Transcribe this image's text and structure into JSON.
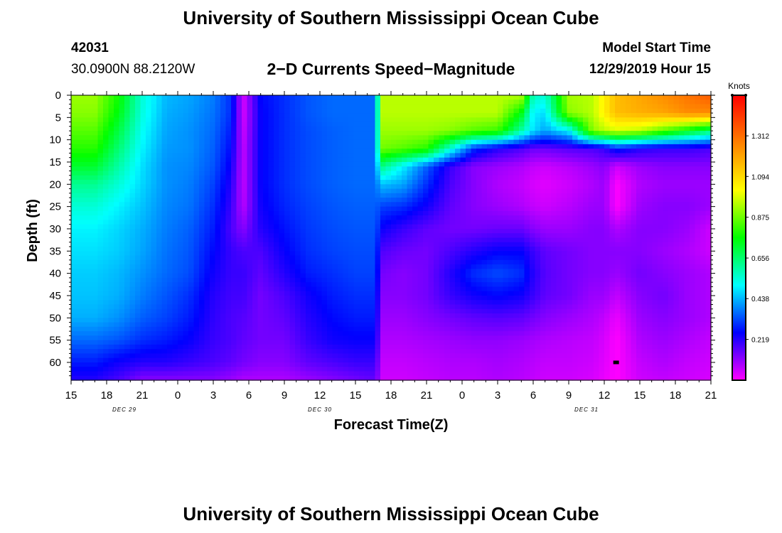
{
  "header": {
    "title": "University of Southern Mississippi Ocean Cube",
    "station_id": "42031",
    "coordinates": "30.0900N 88.2120W",
    "plot_title": "2−D Currents Speed−Magnitude",
    "model_start_label": "Model Start Time",
    "model_start_value": "12/29/2019 Hour 15"
  },
  "footer": {
    "title": "University of Southern Mississippi Ocean Cube"
  },
  "chart_data": {
    "type": "heatmap",
    "title": "2−D Currents Speed−Magnitude",
    "xlabel": "Forecast Time(Z)",
    "ylabel": "Depth (ft)",
    "x_tick_labels": [
      "15",
      "18",
      "21",
      "0",
      "3",
      "6",
      "9",
      "12",
      "15",
      "18",
      "21",
      "0",
      "3",
      "6",
      "9",
      "12",
      "15",
      "18",
      "21"
    ],
    "x_range_hours": [
      0,
      54
    ],
    "date_labels": [
      {
        "text": "DEC 29",
        "hour": 4.5
      },
      {
        "text": "DEC 30",
        "hour": 21
      },
      {
        "text": "DEC 31",
        "hour": 43.5
      }
    ],
    "y_tick_labels": [
      "0",
      "5",
      "10",
      "15",
      "20",
      "25",
      "30",
      "35",
      "40",
      "45",
      "50",
      "55",
      "60"
    ],
    "y_range_ft": [
      0,
      64
    ],
    "colorbar": {
      "unit": "Knots",
      "tick_labels": [
        "1.312",
        "1.094",
        "0.875",
        "0.656",
        "0.438",
        "0.219"
      ],
      "range": [
        0,
        1.53
      ],
      "colors": [
        "#ff00ff",
        "#0000ff",
        "#00ffff",
        "#00ff00",
        "#ffff00",
        "#ff8000",
        "#ff0000"
      ]
    },
    "nodes_hours": [
      0,
      2,
      4,
      6,
      8,
      10,
      12,
      13.5,
      14.5,
      16,
      18,
      20,
      22,
      24,
      25.8,
      26,
      28,
      30,
      32,
      34,
      36,
      38,
      39,
      40,
      42,
      44,
      45,
      46,
      48,
      50,
      52,
      54
    ],
    "nodes_depth_ft": [
      0,
      4,
      8,
      12,
      16,
      20,
      25,
      30,
      35,
      40,
      45,
      50,
      55,
      60,
      64
    ],
    "speed_knots": [
      [
        0.92,
        0.92,
        0.78,
        0.55,
        0.44,
        0.42,
        0.38,
        0.3,
        0.04,
        0.26,
        0.3,
        0.34,
        0.36,
        0.36,
        0.36,
        0.95,
        0.95,
        0.95,
        0.95,
        0.95,
        0.95,
        0.95,
        0.58,
        0.55,
        0.93,
        0.95,
        1.05,
        1.15,
        1.2,
        1.25,
        1.3,
        1.35
      ],
      [
        0.9,
        0.9,
        0.75,
        0.54,
        0.43,
        0.41,
        0.37,
        0.3,
        0.04,
        0.25,
        0.3,
        0.34,
        0.36,
        0.36,
        0.36,
        0.95,
        0.95,
        0.95,
        0.95,
        0.95,
        0.95,
        0.75,
        0.5,
        0.48,
        0.9,
        0.95,
        1.05,
        1.15,
        1.18,
        1.2,
        1.25,
        1.25
      ],
      [
        0.85,
        0.85,
        0.7,
        0.52,
        0.42,
        0.4,
        0.36,
        0.28,
        0.05,
        0.25,
        0.3,
        0.33,
        0.35,
        0.36,
        0.36,
        0.92,
        0.92,
        0.92,
        0.9,
        0.85,
        0.82,
        0.6,
        0.48,
        0.42,
        0.5,
        0.9,
        0.95,
        0.98,
        0.95,
        0.85,
        0.75,
        0.65
      ],
      [
        0.8,
        0.8,
        0.65,
        0.5,
        0.41,
        0.4,
        0.35,
        0.26,
        0.06,
        0.25,
        0.3,
        0.33,
        0.35,
        0.36,
        0.36,
        0.88,
        0.85,
        0.8,
        0.55,
        0.3,
        0.22,
        0.18,
        0.15,
        0.15,
        0.17,
        0.18,
        0.2,
        0.28,
        0.22,
        0.2,
        0.2,
        0.18
      ],
      [
        0.72,
        0.72,
        0.6,
        0.48,
        0.4,
        0.39,
        0.34,
        0.24,
        0.06,
        0.25,
        0.3,
        0.33,
        0.35,
        0.36,
        0.36,
        0.65,
        0.5,
        0.35,
        0.2,
        0.12,
        0.1,
        0.08,
        0.06,
        0.05,
        0.07,
        0.1,
        0.12,
        0.05,
        0.1,
        0.12,
        0.12,
        0.12
      ],
      [
        0.62,
        0.62,
        0.55,
        0.47,
        0.4,
        0.38,
        0.32,
        0.22,
        0.06,
        0.25,
        0.3,
        0.33,
        0.35,
        0.36,
        0.36,
        0.45,
        0.42,
        0.3,
        0.18,
        0.12,
        0.08,
        0.06,
        0.04,
        0.03,
        0.05,
        0.08,
        0.1,
        0.0,
        0.08,
        0.1,
        0.1,
        0.1
      ],
      [
        0.55,
        0.55,
        0.5,
        0.45,
        0.39,
        0.37,
        0.3,
        0.2,
        0.07,
        0.24,
        0.29,
        0.32,
        0.34,
        0.35,
        0.35,
        0.32,
        0.3,
        0.24,
        0.16,
        0.12,
        0.1,
        0.08,
        0.06,
        0.05,
        0.07,
        0.1,
        0.1,
        0.0,
        0.1,
        0.12,
        0.12,
        0.1
      ],
      [
        0.5,
        0.5,
        0.47,
        0.43,
        0.38,
        0.35,
        0.28,
        0.18,
        0.12,
        0.22,
        0.27,
        0.31,
        0.33,
        0.34,
        0.34,
        0.25,
        0.2,
        0.16,
        0.14,
        0.14,
        0.15,
        0.15,
        0.12,
        0.1,
        0.1,
        0.12,
        0.12,
        0.08,
        0.12,
        0.12,
        0.1,
        0.05
      ],
      [
        0.48,
        0.48,
        0.46,
        0.42,
        0.37,
        0.34,
        0.26,
        0.2,
        0.18,
        0.18,
        0.25,
        0.3,
        0.32,
        0.33,
        0.33,
        0.18,
        0.15,
        0.14,
        0.18,
        0.22,
        0.25,
        0.25,
        0.2,
        0.16,
        0.14,
        0.12,
        0.12,
        0.12,
        0.12,
        0.1,
        0.08,
        0.05
      ],
      [
        0.46,
        0.46,
        0.44,
        0.4,
        0.36,
        0.33,
        0.24,
        0.2,
        0.2,
        0.16,
        0.22,
        0.28,
        0.3,
        0.32,
        0.32,
        0.14,
        0.12,
        0.14,
        0.22,
        0.3,
        0.33,
        0.3,
        0.22,
        0.17,
        0.14,
        0.12,
        0.12,
        0.1,
        0.14,
        0.12,
        0.1,
        0.08
      ],
      [
        0.45,
        0.45,
        0.43,
        0.38,
        0.34,
        0.3,
        0.22,
        0.19,
        0.19,
        0.14,
        0.18,
        0.24,
        0.28,
        0.3,
        0.3,
        0.12,
        0.12,
        0.14,
        0.2,
        0.24,
        0.26,
        0.24,
        0.2,
        0.16,
        0.14,
        0.1,
        0.1,
        0.06,
        0.12,
        0.14,
        0.1,
        0.08
      ],
      [
        0.43,
        0.43,
        0.4,
        0.35,
        0.32,
        0.28,
        0.21,
        0.18,
        0.17,
        0.14,
        0.16,
        0.22,
        0.26,
        0.28,
        0.28,
        0.1,
        0.1,
        0.12,
        0.14,
        0.16,
        0.17,
        0.16,
        0.14,
        0.12,
        0.1,
        0.08,
        0.06,
        0.02,
        0.1,
        0.12,
        0.1,
        0.08
      ],
      [
        0.36,
        0.36,
        0.34,
        0.3,
        0.28,
        0.25,
        0.2,
        0.18,
        0.16,
        0.14,
        0.14,
        0.2,
        0.24,
        0.25,
        0.25,
        0.08,
        0.08,
        0.09,
        0.1,
        0.11,
        0.11,
        0.1,
        0.09,
        0.08,
        0.07,
        0.06,
        0.04,
        0.0,
        0.08,
        0.1,
        0.08,
        0.06
      ],
      [
        0.28,
        0.28,
        0.24,
        0.22,
        0.22,
        0.2,
        0.18,
        0.16,
        0.14,
        0.12,
        0.12,
        0.16,
        0.18,
        0.2,
        0.2,
        0.06,
        0.06,
        0.07,
        0.08,
        0.08,
        0.09,
        0.08,
        0.07,
        0.06,
        0.06,
        0.05,
        0.03,
        0.0,
        0.06,
        0.08,
        0.06,
        0.05
      ],
      [
        0.22,
        0.22,
        0.18,
        0.12,
        0.12,
        0.12,
        0.12,
        0.1,
        0.08,
        0.08,
        0.08,
        0.1,
        0.12,
        0.14,
        0.16,
        0.05,
        0.05,
        0.06,
        0.07,
        0.07,
        0.08,
        0.07,
        0.06,
        0.05,
        0.05,
        0.04,
        0.02,
        0.0,
        0.05,
        0.06,
        0.05,
        0.04
      ]
    ],
    "marker": {
      "hour": 46,
      "depth_ft": 60
    }
  }
}
